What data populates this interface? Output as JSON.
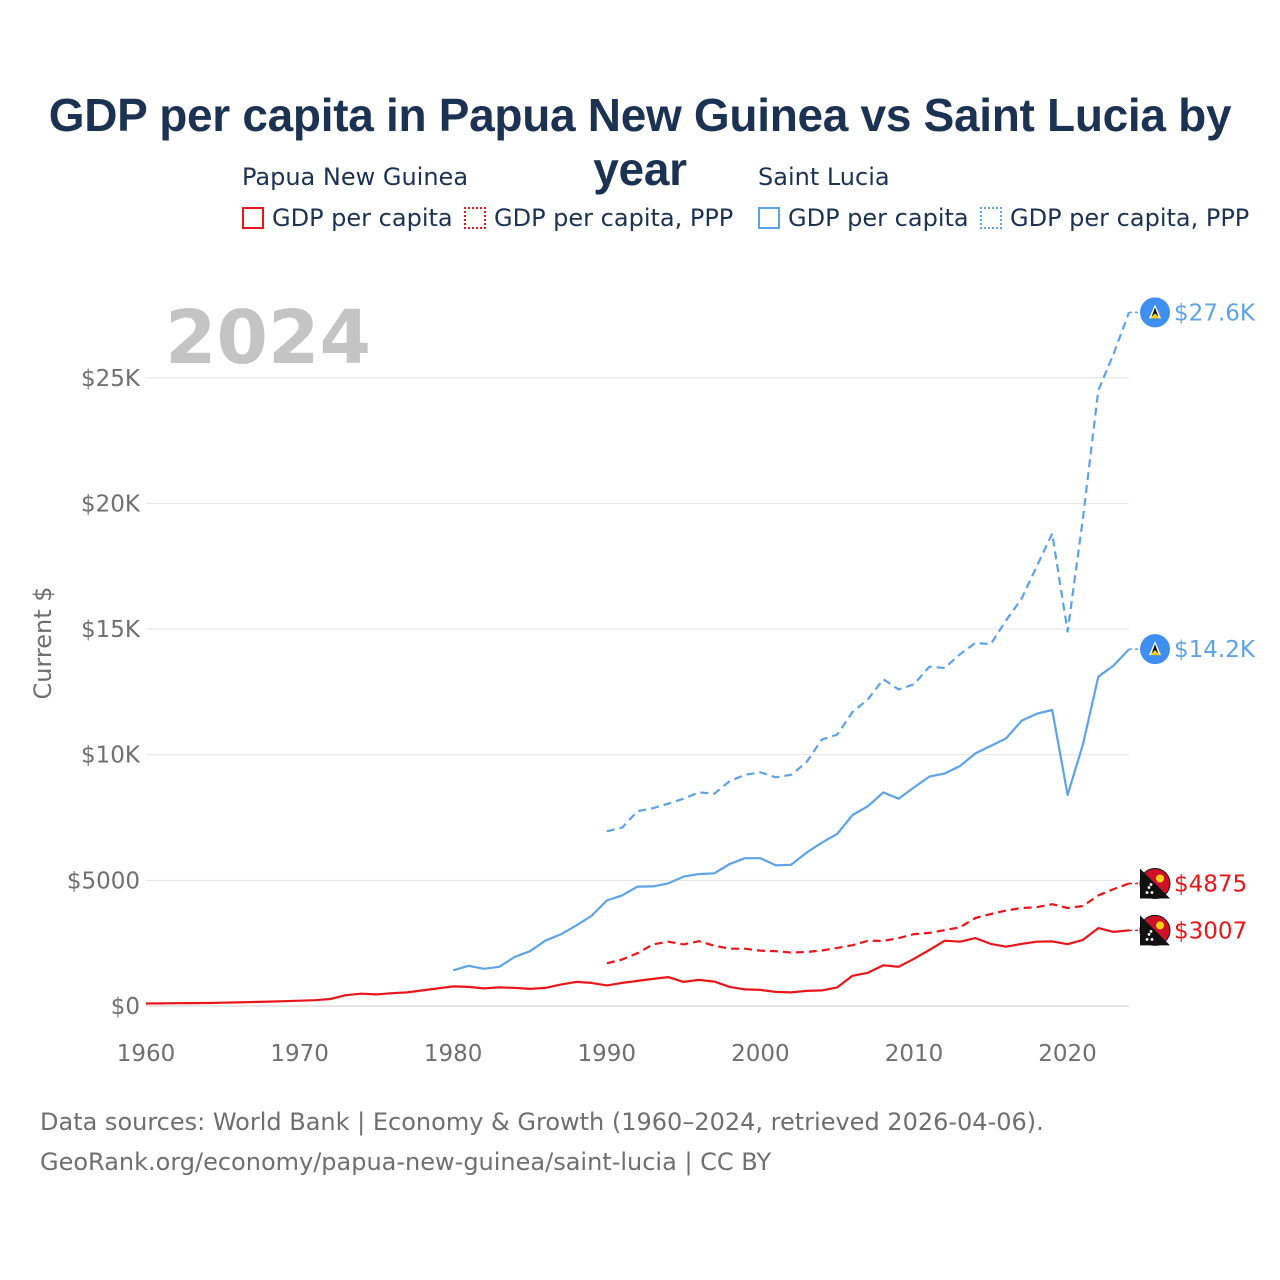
{
  "colors": {
    "png": "#e8161b",
    "lca": "#5ea3e6",
    "title": "#1b3253",
    "axis": "#6f6f6f",
    "grid": "#e3e3e3",
    "stamp": "#c4c4c4"
  },
  "title": "GDP per capita in Papua New Guinea vs Saint Lucia by year",
  "legend": {
    "group1": {
      "name": "Papua New Guinea",
      "item1": "GDP per capita",
      "item2": "GDP per capita, PPP"
    },
    "group2": {
      "name": "Saint Lucia",
      "item1": "GDP per capita",
      "item2": "GDP per capita, PPP"
    }
  },
  "year_stamp": "2024",
  "footer": {
    "line1": "Data sources: World Bank | Economy & Growth (1960–2024, retrieved 2026-04-06).",
    "line2": "GeoRank.org/economy/papua-new-guinea/saint-lucia | CC BY"
  },
  "chart_data": {
    "type": "line",
    "title": "GDP per capita in Papua New Guinea vs Saint Lucia by year",
    "xlabel": "",
    "ylabel": "Current $",
    "xlim": [
      1960,
      2024
    ],
    "ylim": [
      0,
      27600
    ],
    "x_ticks": [
      1960,
      1970,
      1980,
      1990,
      2000,
      2010,
      2020
    ],
    "x_tick_labels": [
      "1960",
      "1970",
      "1980",
      "1990",
      "2000",
      "2010",
      "2020"
    ],
    "y_ticks": [
      0,
      5000,
      10000,
      15000,
      20000,
      25000
    ],
    "y_tick_labels": [
      "$0",
      "$5000",
      "$10K",
      "$15K",
      "$20K",
      "$25K"
    ],
    "grid": true,
    "series": [
      {
        "name": "Papua New Guinea — GDP per capita",
        "color": "#e8161b",
        "dash": "solid",
        "flag": "png-flag",
        "end_label": "$3007",
        "x": [
          1960,
          1961,
          1962,
          1963,
          1964,
          1965,
          1966,
          1967,
          1968,
          1969,
          1970,
          1971,
          1972,
          1973,
          1974,
          1975,
          1976,
          1977,
          1978,
          1979,
          1980,
          1981,
          1982,
          1983,
          1984,
          1985,
          1986,
          1987,
          1988,
          1989,
          1990,
          1991,
          1992,
          1993,
          1994,
          1995,
          1996,
          1997,
          1998,
          1999,
          2000,
          2001,
          2002,
          2003,
          2004,
          2005,
          2006,
          2007,
          2008,
          2009,
          2010,
          2011,
          2012,
          2013,
          2014,
          2015,
          2016,
          2017,
          2018,
          2019,
          2020,
          2021,
          2022,
          2023,
          2024
        ],
        "y": [
          100,
          105,
          110,
          115,
          120,
          130,
          145,
          160,
          175,
          190,
          210,
          230,
          280,
          430,
          490,
          460,
          510,
          540,
          620,
          700,
          780,
          760,
          700,
          740,
          720,
          680,
          720,
          850,
          960,
          920,
          820,
          920,
          1000,
          1080,
          1150,
          960,
          1040,
          970,
          760,
          660,
          640,
          560,
          540,
          600,
          620,
          740,
          1200,
          1320,
          1620,
          1560,
          1880,
          2230,
          2600,
          2560,
          2700,
          2470,
          2360,
          2470,
          2560,
          2570,
          2460,
          2630,
          3100,
          2950,
          3007
        ]
      },
      {
        "name": "Papua New Guinea — GDP per capita, PPP",
        "color": "#e8161b",
        "dash": "dashed",
        "flag": "png-flag",
        "end_label": "$4875",
        "x": [
          1990,
          1991,
          1992,
          1993,
          1994,
          1995,
          1996,
          1997,
          1998,
          1999,
          2000,
          2001,
          2002,
          2003,
          2004,
          2005,
          2006,
          2007,
          2008,
          2009,
          2010,
          2011,
          2012,
          2013,
          2014,
          2015,
          2016,
          2017,
          2018,
          2019,
          2020,
          2021,
          2022,
          2023,
          2024
        ],
        "y": [
          1700,
          1850,
          2100,
          2450,
          2560,
          2450,
          2580,
          2400,
          2280,
          2280,
          2200,
          2180,
          2130,
          2150,
          2210,
          2310,
          2420,
          2600,
          2590,
          2700,
          2860,
          2910,
          3020,
          3130,
          3500,
          3660,
          3800,
          3900,
          3930,
          4050,
          3900,
          3980,
          4400,
          4650,
          4875
        ]
      },
      {
        "name": "Saint Lucia — GDP per capita",
        "color": "#5ea3e6",
        "dash": "solid",
        "flag": "lca-flag",
        "end_label": "$14.2K",
        "x": [
          1980,
          1981,
          1982,
          1983,
          1984,
          1985,
          1986,
          1987,
          1988,
          1989,
          1990,
          1991,
          1992,
          1993,
          1994,
          1995,
          1996,
          1997,
          1998,
          1999,
          2000,
          2001,
          2002,
          2003,
          2004,
          2005,
          2006,
          2007,
          2008,
          2009,
          2010,
          2011,
          2012,
          2013,
          2014,
          2015,
          2016,
          2017,
          2018,
          2019,
          2020,
          2021,
          2022,
          2023,
          2024
        ],
        "y": [
          1420,
          1600,
          1480,
          1560,
          1950,
          2180,
          2600,
          2850,
          3200,
          3580,
          4200,
          4400,
          4750,
          4760,
          4880,
          5150,
          5250,
          5280,
          5650,
          5880,
          5880,
          5600,
          5620,
          6100,
          6500,
          6850,
          7600,
          7950,
          8500,
          8250,
          8700,
          9130,
          9250,
          9550,
          10050,
          10350,
          10650,
          11350,
          11630,
          11780,
          8400,
          10400,
          13100,
          13550,
          14200
        ]
      },
      {
        "name": "Saint Lucia — GDP per capita, PPP",
        "color": "#5ea3e6",
        "dash": "dashed",
        "flag": "lca-flag",
        "end_label": "$27.6K",
        "x": [
          1990,
          1991,
          1992,
          1993,
          1994,
          1995,
          1996,
          1997,
          1998,
          1999,
          2000,
          2001,
          2002,
          2003,
          2004,
          2005,
          2006,
          2007,
          2008,
          2009,
          2010,
          2011,
          2012,
          2013,
          2014,
          2015,
          2016,
          2017,
          2018,
          2019,
          2020,
          2021,
          2022,
          2023,
          2024
        ],
        "y": [
          6950,
          7100,
          7750,
          7870,
          8050,
          8250,
          8500,
          8450,
          8950,
          9200,
          9300,
          9100,
          9200,
          9700,
          10600,
          10800,
          11700,
          12200,
          13000,
          12600,
          12800,
          13500,
          13450,
          14000,
          14450,
          14400,
          15350,
          16200,
          17500,
          18800,
          14900,
          19400,
          24500,
          25950,
          27600
        ]
      }
    ]
  }
}
